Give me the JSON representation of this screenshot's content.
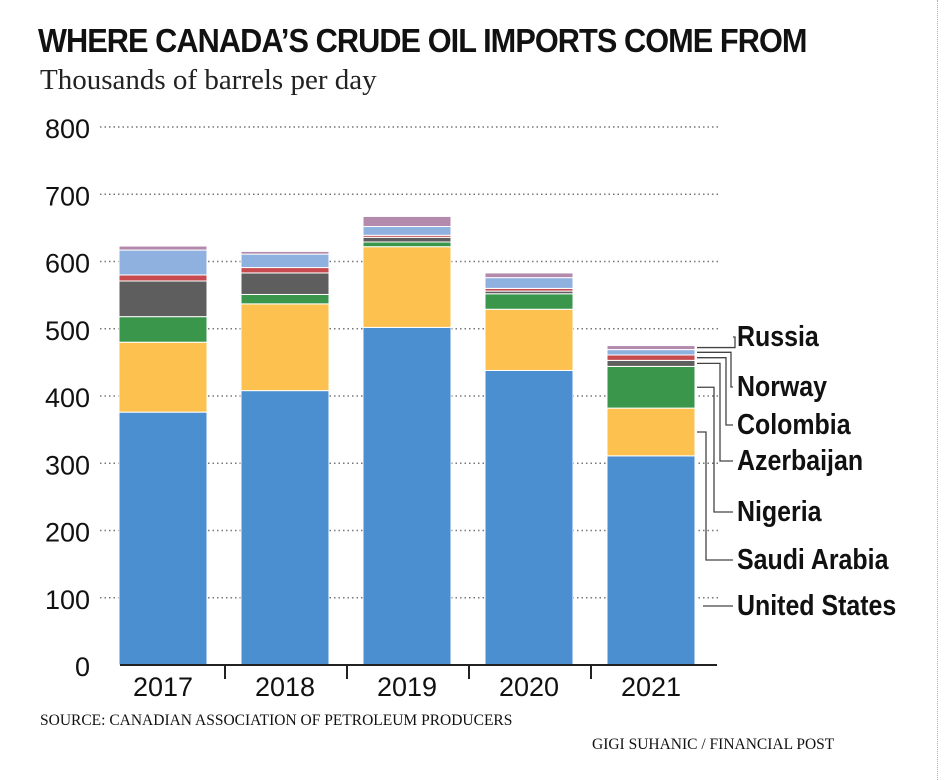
{
  "title": "WHERE CANADA’S CRUDE OIL IMPORTS COME FROM",
  "subtitle": "Thousands of barrels per day",
  "source": "SOURCE: CANADIAN ASSOCIATION OF PETROLEUM PRODUCERS",
  "credit": "GIGI SUHANIC  / FINANCIAL POST",
  "chart_data": {
    "type": "bar",
    "stacked": true,
    "categories": [
      "2017",
      "2018",
      "2019",
      "2020",
      "2021"
    ],
    "ylim": [
      0,
      800
    ],
    "yticks": [
      0,
      100,
      200,
      300,
      400,
      500,
      600,
      700,
      800
    ],
    "grid": true,
    "legend": "right",
    "series": [
      {
        "name": "United States",
        "color": "#4b8fd0",
        "values": [
          376,
          408,
          502,
          438,
          311
        ]
      },
      {
        "name": "Saudi Arabia",
        "color": "#fcc14f",
        "values": [
          104,
          129,
          120,
          91,
          71
        ]
      },
      {
        "name": "Nigeria",
        "color": "#39964a",
        "values": [
          38,
          14,
          7,
          23,
          62
        ]
      },
      {
        "name": "Azerbaijan",
        "color": "#5e5e5e",
        "values": [
          53,
          32,
          7,
          4,
          9
        ]
      },
      {
        "name": "Colombia",
        "color": "#c64a4e",
        "values": [
          9,
          8,
          3,
          4,
          8
        ]
      },
      {
        "name": "Norway",
        "color": "#8fb1e0",
        "values": [
          37,
          20,
          13,
          16,
          8
        ]
      },
      {
        "name": "Russia",
        "color": "#b48aac",
        "values": [
          6,
          4,
          15,
          7,
          6
        ]
      }
    ]
  }
}
